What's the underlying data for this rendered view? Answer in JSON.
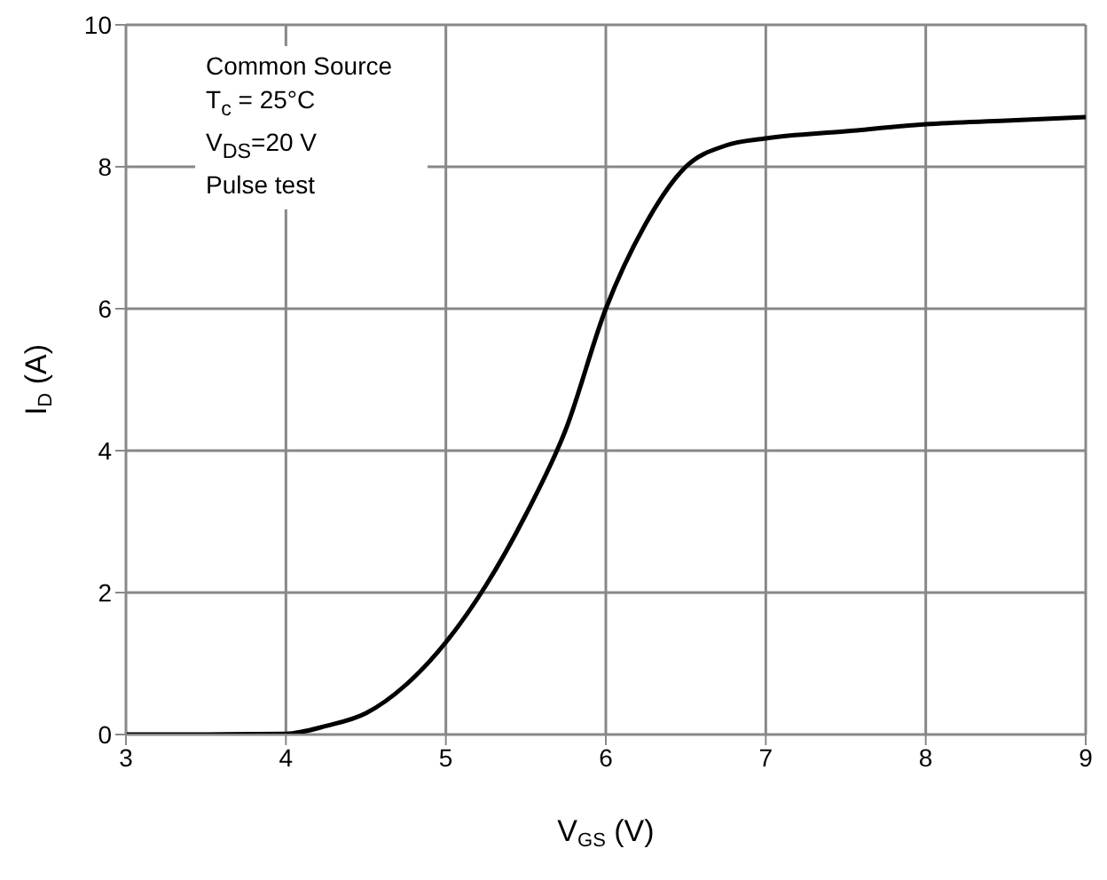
{
  "chart_data": {
    "type": "line",
    "xlabel": "V$_{GS}$ (V)",
    "ylabel": "I$_{D}$ (A)",
    "annotations": [
      "Common Source",
      "T$_{c}$ = 25°C",
      "V$_{DS}$=20 V",
      "Pulse test"
    ],
    "x": [
      3,
      3.5,
      4,
      4.25,
      4.5,
      4.75,
      5,
      5.25,
      5.5,
      5.75,
      6,
      6.25,
      6.5,
      6.75,
      7,
      7.5,
      8,
      8.5,
      9
    ],
    "series": [
      {
        "color": "#000000",
        "values": [
          0,
          0,
          0.01,
          0.12,
          0.3,
          0.7,
          1.3,
          2.1,
          3.1,
          4.3,
          6.0,
          7.2,
          8.0,
          8.3,
          8.4,
          8.5,
          8.6,
          8.65,
          8.7
        ]
      }
    ],
    "xlim": [
      3,
      9
    ],
    "xticks": [
      3,
      4,
      5,
      6,
      7,
      8,
      9
    ],
    "ylim": [
      0,
      10
    ],
    "yticks": [
      0,
      2,
      4,
      6,
      8,
      10
    ],
    "grid": true,
    "marker": "none",
    "line_style": "solid",
    "legend": false
  }
}
